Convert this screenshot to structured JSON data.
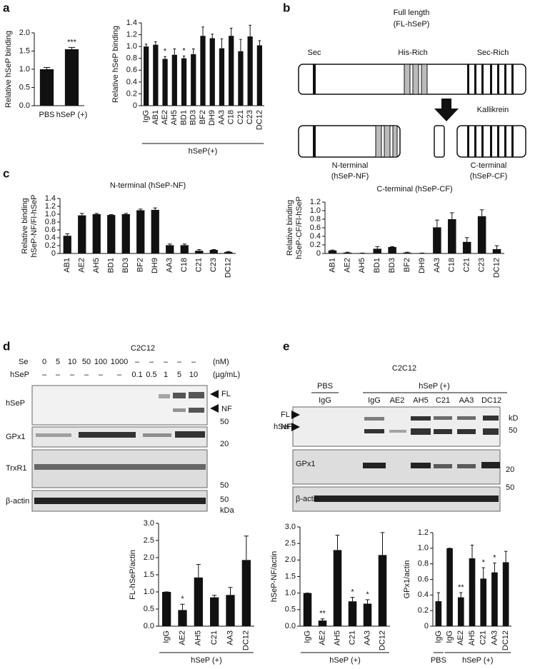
{
  "panel_labels": [
    "a",
    "b",
    "c",
    "d",
    "e"
  ],
  "chart_data": [
    {
      "type": "bar",
      "ylabel": [
        "Relative hSeP binding"
      ],
      "categories": [
        "PBS",
        "hSeP (+)"
      ],
      "values": [
        1.0,
        1.55
      ],
      "errors": [
        0.05,
        0.05
      ],
      "significance": [
        null,
        "***"
      ],
      "color": "#111111",
      "rotated_labels": false,
      "ylim": [
        0,
        2
      ],
      "yticks": [
        {
          "value": 0,
          "label": "0.0"
        },
        0.5,
        {
          "value": 1,
          "label": "1.0"
        },
        1.5,
        {
          "value": 2,
          "label": "2.0"
        }
      ]
    },
    {
      "type": "bar",
      "ylabel": [
        "Relative hSeP binding"
      ],
      "categories": [
        "IgG",
        "AB1",
        "AE2",
        "AH5",
        "BD1",
        "BD3",
        "BF2",
        "DH9",
        "AA3",
        "C18",
        "C21",
        "C23",
        "DC12"
      ],
      "values": [
        1.0,
        1.03,
        0.79,
        0.86,
        0.8,
        0.87,
        1.18,
        1.14,
        0.97,
        1.18,
        0.92,
        1.17,
        1.02
      ],
      "errors": [
        0.04,
        0.05,
        0.04,
        0.1,
        0.04,
        0.09,
        0.15,
        0.07,
        0.16,
        0.13,
        0.2,
        0.19,
        0.08
      ],
      "significance": [
        null,
        null,
        "*",
        null,
        "*",
        null,
        null,
        null,
        null,
        null,
        null,
        null,
        null
      ],
      "groups": [
        {
          "label": "hSeP(+)",
          "from": 0,
          "to": 12
        }
      ],
      "color": "#111111",
      "rotated_labels": true,
      "ylim": [
        0,
        1.4
      ],
      "yticks": [
        0,
        0.2,
        0.4,
        0.6,
        0.8,
        {
          "value": 1,
          "label": "1.0"
        },
        1.2,
        1.4
      ]
    },
    {
      "type": "bar",
      "title": "N-terminal (hSeP-NF)",
      "ylabel": [
        "Relative binding",
        "hSeP-NF/Fl-hSeP"
      ],
      "categories": [
        "AB1",
        "AE2",
        "AH5",
        "BD1",
        "BD3",
        "BF2",
        "DH9",
        "AA3",
        "C18",
        "C21",
        "C23",
        "DC12"
      ],
      "values": [
        0.45,
        0.97,
        1.0,
        0.98,
        1.0,
        1.1,
        1.11,
        0.21,
        0.21,
        0.07,
        0.09,
        0.04
      ],
      "errors": [
        0.05,
        0.05,
        0.02,
        0.01,
        0.02,
        0.03,
        0.05,
        0.03,
        0.03,
        0.03,
        0.01,
        0.01
      ],
      "color": "#111111",
      "rotated_labels": true,
      "ylim": [
        0,
        1.4
      ],
      "yticks": [
        0,
        0.2,
        0.4,
        0.6,
        0.8,
        {
          "value": 1,
          "label": "1.0"
        },
        1.2,
        1.4
      ]
    },
    {
      "type": "bar",
      "title": "C-terminal (hSeP-CF)",
      "ylabel": [
        "Relative binding",
        "hSeP-CF/Fl-hSeP"
      ],
      "categories": [
        "AB1",
        "AE2",
        "AH5",
        "BD1",
        "BD3",
        "BF2",
        "DH9",
        "AA3",
        "C18",
        "C21",
        "C23",
        "DC12"
      ],
      "values": [
        0.07,
        0.02,
        0.01,
        0.11,
        0.15,
        0.02,
        0.01,
        0.61,
        0.8,
        0.27,
        0.87,
        0.1
      ],
      "errors": [
        0.01,
        0.01,
        0.0,
        0.05,
        0.01,
        0.01,
        0.0,
        0.17,
        0.15,
        0.1,
        0.15,
        0.08
      ],
      "color": "#111111",
      "rotated_labels": true,
      "ylim": [
        0,
        1.2
      ],
      "yticks": [
        0,
        0.2,
        0.4,
        0.6,
        0.8,
        {
          "value": 1,
          "label": "1.0"
        },
        1.2
      ]
    },
    {
      "type": "bar",
      "ylabel": [
        "FL-hSeP/actin"
      ],
      "categories": [
        "IgG",
        "AE2",
        "AH5",
        "C21",
        "AA3",
        "DC12"
      ],
      "values": [
        1.0,
        0.47,
        1.42,
        0.84,
        0.91,
        1.93
      ],
      "errors": [
        0.0,
        0.17,
        0.38,
        0.06,
        0.22,
        0.7
      ],
      "significance": [
        null,
        "*",
        null,
        null,
        null,
        null
      ],
      "groups": [
        {
          "label": "hSeP (+)",
          "from": 0,
          "to": 5
        }
      ],
      "color": "#111111",
      "rotated_labels": true,
      "ylim": [
        0,
        3
      ],
      "yticks": [
        {
          "value": 0,
          "label": "0.0"
        },
        0.5,
        {
          "value": 1,
          "label": "1.0"
        },
        1.5,
        {
          "value": 2,
          "label": "2.0"
        },
        2.5,
        {
          "value": 3,
          "label": "3.0"
        }
      ]
    },
    {
      "type": "bar",
      "ylabel": [
        "hSeP-NF/actin"
      ],
      "categories": [
        "IgG",
        "AE2",
        "AH5",
        "C21",
        "AA3",
        "DC12"
      ],
      "values": [
        1.0,
        0.17,
        2.3,
        0.75,
        0.68,
        2.15
      ],
      "errors": [
        0.0,
        0.05,
        0.45,
        0.12,
        0.12,
        0.68
      ],
      "significance": [
        null,
        "**",
        null,
        "*",
        "*",
        null
      ],
      "groups": [
        {
          "label": "hSeP (+)",
          "from": 0,
          "to": 5
        }
      ],
      "color": "#111111",
      "rotated_labels": true,
      "ylim": [
        0,
        3
      ],
      "yticks": [
        {
          "value": 0,
          "label": "0.0"
        },
        0.5,
        {
          "value": 1,
          "label": "1.0"
        },
        1.5,
        {
          "value": 2,
          "label": "2.0"
        },
        2.5,
        {
          "value": 3,
          "label": "3.0"
        }
      ]
    },
    {
      "type": "bar",
      "ylabel": [
        "GPx1/actin"
      ],
      "categories": [
        "IgG",
        "IgG",
        "AE2",
        "AH5",
        "C21",
        "AA3",
        "DC12"
      ],
      "values": [
        0.32,
        1.0,
        0.37,
        0.87,
        0.61,
        0.69,
        0.82
      ],
      "errors": [
        0.11,
        0.0,
        0.06,
        0.17,
        0.14,
        0.12,
        0.14
      ],
      "significance": [
        null,
        null,
        "**",
        null,
        "*",
        "*",
        null
      ],
      "groups": [
        {
          "label": "PBS",
          "from": 0,
          "to": 0
        },
        {
          "label": "hSeP (+)",
          "from": 1,
          "to": 6
        }
      ],
      "color": "#111111",
      "rotated_labels": true,
      "ylim": [
        0,
        1.2
      ],
      "yticks": [
        0,
        0.2,
        0.4,
        0.6,
        0.8,
        {
          "value": 1,
          "label": "1.0"
        },
        1.2
      ]
    }
  ],
  "diagram": {
    "full_title": [
      "Full length",
      "(FL-hSeP)"
    ],
    "regions": [
      "Sec",
      "His-Rich",
      "Sec-Rich"
    ],
    "enzyme": "Kallikrein",
    "nf": [
      "N-terminal",
      "(hSeP-NF)"
    ],
    "cf": [
      "C-terminal",
      "(hSeP-CF)"
    ]
  },
  "blot_d": {
    "cell": "C2C12",
    "se_label": "Se",
    "se": [
      "0",
      "5",
      "10",
      "50",
      "100",
      "1000",
      "–",
      "–",
      "–",
      "–",
      "–"
    ],
    "se_unit": "(nM)",
    "hsep_label": "hSeP",
    "hsep": [
      "–",
      "–",
      "–",
      "–",
      "–",
      "–",
      "0.1",
      "0.5",
      "1",
      "5",
      "10"
    ],
    "hsep_unit": "(µg/mL)",
    "rows": [
      "hSeP",
      "GPx1",
      "TrxR1",
      "β-actin"
    ],
    "bands": [
      "FL",
      "NF"
    ],
    "markers": [
      "50",
      "20",
      "50",
      "50",
      "kDa"
    ]
  },
  "blot_e": {
    "cell": "C2C12",
    "groups": [
      "PBS",
      "hSeP (+)"
    ],
    "lanes": [
      "IgG",
      "IgG",
      "AE2",
      "AH5",
      "C21",
      "AA3",
      "DC12"
    ],
    "rows": [
      "hSeP",
      "GPx1",
      "β-actin"
    ],
    "bands": [
      "FL",
      "NF"
    ],
    "markers": [
      "kD",
      "50",
      "20",
      "50"
    ]
  }
}
